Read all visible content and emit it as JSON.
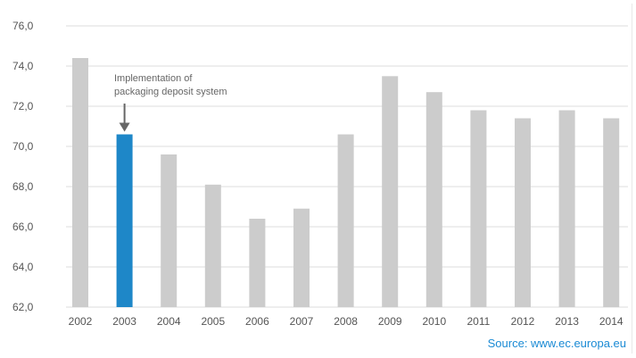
{
  "chart_data": {
    "type": "bar",
    "title": "",
    "xlabel": "",
    "ylabel": "",
    "categories": [
      "2002",
      "2003",
      "2004",
      "2005",
      "2006",
      "2007",
      "2008",
      "2009",
      "2010",
      "2011",
      "2012",
      "2013",
      "2014"
    ],
    "values": [
      74.4,
      70.6,
      69.6,
      68.1,
      66.4,
      66.9,
      70.6,
      73.5,
      72.7,
      71.8,
      71.4,
      71.8,
      71.4
    ],
    "ylim": [
      62.0,
      76.0
    ],
    "yticks": [
      "62,0",
      "64,0",
      "66,0",
      "68,0",
      "70,0",
      "72,0",
      "74,0",
      "76,0"
    ],
    "grid": "horizontal",
    "highlight_category": "2003",
    "colors": {
      "bar": "#cccccc",
      "highlight": "#1e87c8",
      "grid": "#dcdcdc",
      "arrow": "#666666"
    },
    "annotation": {
      "line1": "Implementation of",
      "line2": "packaging deposit system",
      "target": "2003"
    }
  },
  "source": "Source: www.ec.europa.eu"
}
